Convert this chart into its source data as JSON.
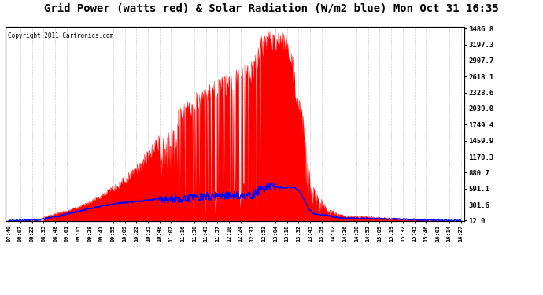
{
  "title": "Grid Power (watts red) & Solar Radiation (W/m2 blue) Mon Oct 31 16:35",
  "copyright": "Copyright 2011 Cartronics.com",
  "yticks": [
    12.0,
    301.6,
    591.1,
    880.7,
    1170.3,
    1459.9,
    1749.4,
    2039.0,
    2328.6,
    2618.1,
    2907.7,
    3197.3,
    3486.8
  ],
  "xtick_labels": [
    "07:40",
    "08:07",
    "08:22",
    "08:35",
    "08:48",
    "09:01",
    "09:15",
    "09:28",
    "09:41",
    "09:55",
    "10:09",
    "10:22",
    "10:35",
    "10:48",
    "11:02",
    "11:16",
    "11:30",
    "11:43",
    "11:57",
    "12:10",
    "12:24",
    "12:37",
    "12:51",
    "13:04",
    "13:18",
    "13:32",
    "13:45",
    "13:59",
    "14:12",
    "14:26",
    "14:38",
    "14:52",
    "15:05",
    "15:19",
    "15:32",
    "15:45",
    "15:46",
    "16:01",
    "16:14",
    "16:27"
  ],
  "ymax": 3486.8,
  "background_color": "#ffffff",
  "grid_color": "#cccccc",
  "title_fontsize": 10,
  "solar_max": 650
}
